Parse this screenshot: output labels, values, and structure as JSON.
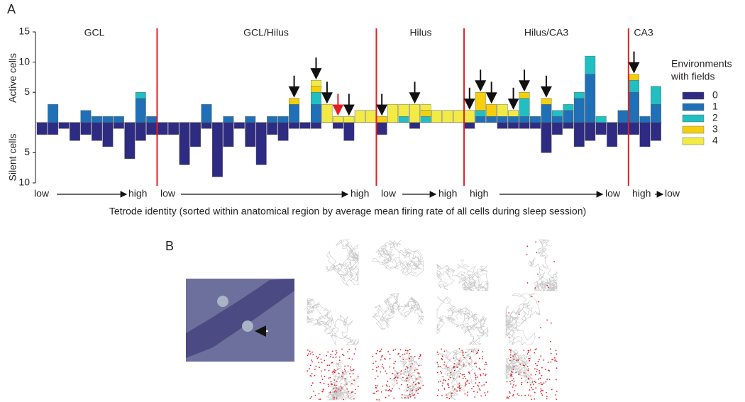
{
  "panel_labels": [
    "A",
    "B"
  ],
  "chart_data": {
    "type": "bar",
    "stacked": true,
    "regions": [
      "GCL",
      "GCL/Hilus",
      "Hilus",
      "Hilus/CA3",
      "CA3"
    ],
    "y_labels": [
      "Active cells",
      "Silent cells"
    ],
    "x_label": "Tetrode identity (sorted within anatomical region by average mean firing rate of all cells during sleep session)",
    "range_labels": [
      "low",
      "high",
      "low",
      "high",
      "low",
      "high",
      "high",
      "low",
      "high",
      "low"
    ],
    "legend_title": [
      "Environments",
      "with fields"
    ],
    "categories": [
      null,
      null,
      null,
      null,
      null,
      null,
      null,
      null,
      null,
      null,
      null,
      null,
      null,
      null,
      null,
      null,
      null,
      null,
      null,
      null,
      null,
      null,
      null,
      null,
      null,
      null,
      null,
      null,
      null,
      null,
      null,
      null,
      null,
      null,
      null,
      null,
      null,
      null,
      null,
      null,
      null,
      null,
      null,
      null,
      null,
      null,
      null,
      null,
      null,
      null,
      null,
      null,
      null,
      null,
      null,
      null,
      null
    ],
    "series": [
      {
        "name": "0",
        "color": "#2e2b83",
        "values": [
          -2,
          -2,
          -1,
          -3,
          -2,
          -3,
          -4,
          -1,
          -6,
          -3,
          -2,
          -2,
          -2,
          -7,
          -4,
          -1,
          -9,
          -4,
          -1,
          -4,
          -7,
          -2,
          -3,
          -1,
          -1,
          -1,
          0,
          -1,
          -3,
          0,
          0,
          -2,
          0,
          0,
          -1,
          0,
          0,
          0,
          0,
          -1,
          0,
          0,
          -1,
          -1,
          -1,
          -1,
          -5,
          -2,
          -1,
          -4,
          -3,
          -2,
          -4,
          -2,
          -2,
          -4,
          -3
        ]
      },
      {
        "name": "1",
        "color": "#1f70b6",
        "values": [
          0,
          3,
          0,
          0,
          2,
          1,
          1,
          1,
          0,
          4,
          1,
          0,
          0,
          0,
          0,
          3,
          0,
          1,
          0,
          1,
          0,
          1,
          1,
          3,
          0,
          3,
          0,
          0,
          0,
          0,
          0,
          0,
          0,
          0,
          0,
          0,
          0,
          0,
          0,
          0,
          1,
          1,
          1,
          1,
          1,
          1,
          3,
          1,
          2,
          4,
          8,
          0,
          0,
          2,
          5,
          1,
          3
        ]
      },
      {
        "name": "2",
        "color": "#22bfc2",
        "values": [
          0,
          0,
          0,
          0,
          0,
          0,
          0,
          0,
          0,
          1,
          0,
          0,
          0,
          0,
          0,
          0,
          0,
          0,
          0,
          0,
          0,
          0,
          0,
          0,
          0,
          2,
          0,
          0,
          0,
          0,
          0,
          0,
          0,
          1,
          0,
          1,
          0,
          0,
          0,
          0,
          1,
          0,
          0,
          0,
          3,
          0,
          0,
          1,
          1,
          1,
          3,
          1,
          0,
          0,
          2,
          0,
          3
        ]
      },
      {
        "name": "3",
        "color": "#f5cf0c",
        "values": [
          0,
          0,
          0,
          0,
          0,
          0,
          0,
          0,
          0,
          0,
          0,
          0,
          0,
          0,
          0,
          0,
          0,
          0,
          0,
          0,
          0,
          0,
          0,
          1,
          0,
          1,
          0,
          0,
          0,
          0,
          0,
          1,
          0,
          0,
          0,
          1,
          0,
          0,
          0,
          0,
          3,
          2,
          0,
          0,
          1,
          0,
          1,
          0,
          0,
          0,
          0,
          0,
          0,
          0,
          1,
          0,
          0
        ]
      },
      {
        "name": "4",
        "color": "#f2ea45",
        "values": [
          0,
          0,
          0,
          0,
          0,
          0,
          0,
          0,
          0,
          0,
          0,
          0,
          0,
          0,
          0,
          0,
          0,
          0,
          0,
          0,
          0,
          0,
          0,
          0,
          0,
          1,
          3,
          1,
          1,
          2,
          2,
          0,
          3,
          2,
          3,
          1,
          2,
          2,
          2,
          2,
          0,
          0,
          2,
          1,
          0,
          0,
          0,
          0,
          0,
          0,
          0,
          0,
          0,
          0,
          0,
          0,
          0
        ]
      }
    ],
    "ylim": [
      -10,
      15
    ],
    "yticks": [
      {
        "value": -10,
        "label": "10"
      },
      {
        "value": -5,
        "label": "5"
      },
      5,
      10,
      15
    ],
    "grid": false
  }
}
